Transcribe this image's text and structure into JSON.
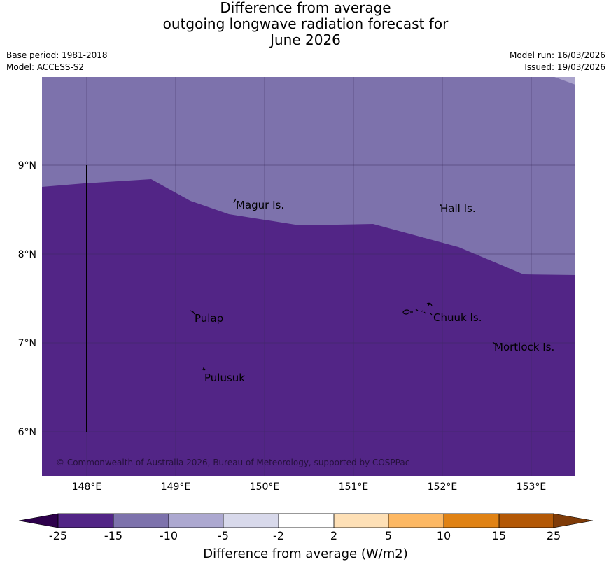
{
  "title": {
    "line1": "Difference from average",
    "line2": "outgoing longwave radiation forecast for",
    "line3": "June 2026"
  },
  "meta": {
    "base_period": "Base period: 1981-2018",
    "model": "Model: ACCESS-S2",
    "model_run": "Model run: 16/03/2026",
    "issued": "Issued: 19/03/2026"
  },
  "map": {
    "lat_labels": [
      "9°N",
      "8°N",
      "7°N",
      "6°N"
    ],
    "lon_labels": [
      "148°E",
      "149°E",
      "150°E",
      "151°E",
      "152°E",
      "153°E"
    ],
    "places": [
      "Magur Is.",
      "Hall Is.",
      "Pulap",
      "Chuuk Is.",
      "Mortlock Is.",
      "Pulusuk"
    ],
    "copyright": "© Commonwealth of Australia 2026, Bureau of Meteorology, supported by COSPPac",
    "fill_colors": {
      "north_region": "#7d72ac",
      "south_region": "#522586",
      "corner": "#aaa3cc"
    }
  },
  "colorbar": {
    "title": "Difference from average (W/m2)",
    "tick_labels": [
      "-25",
      "-15",
      "-10",
      "-5",
      "-2",
      "2",
      "5",
      "10",
      "15",
      "25"
    ],
    "colors": [
      "#2d004b",
      "#522586",
      "#7d72ac",
      "#aca8d0",
      "#d8d9eb",
      "#ffffff",
      "#fee0b6",
      "#fdb863",
      "#e08214",
      "#b35806",
      "#7f3b08"
    ]
  }
}
